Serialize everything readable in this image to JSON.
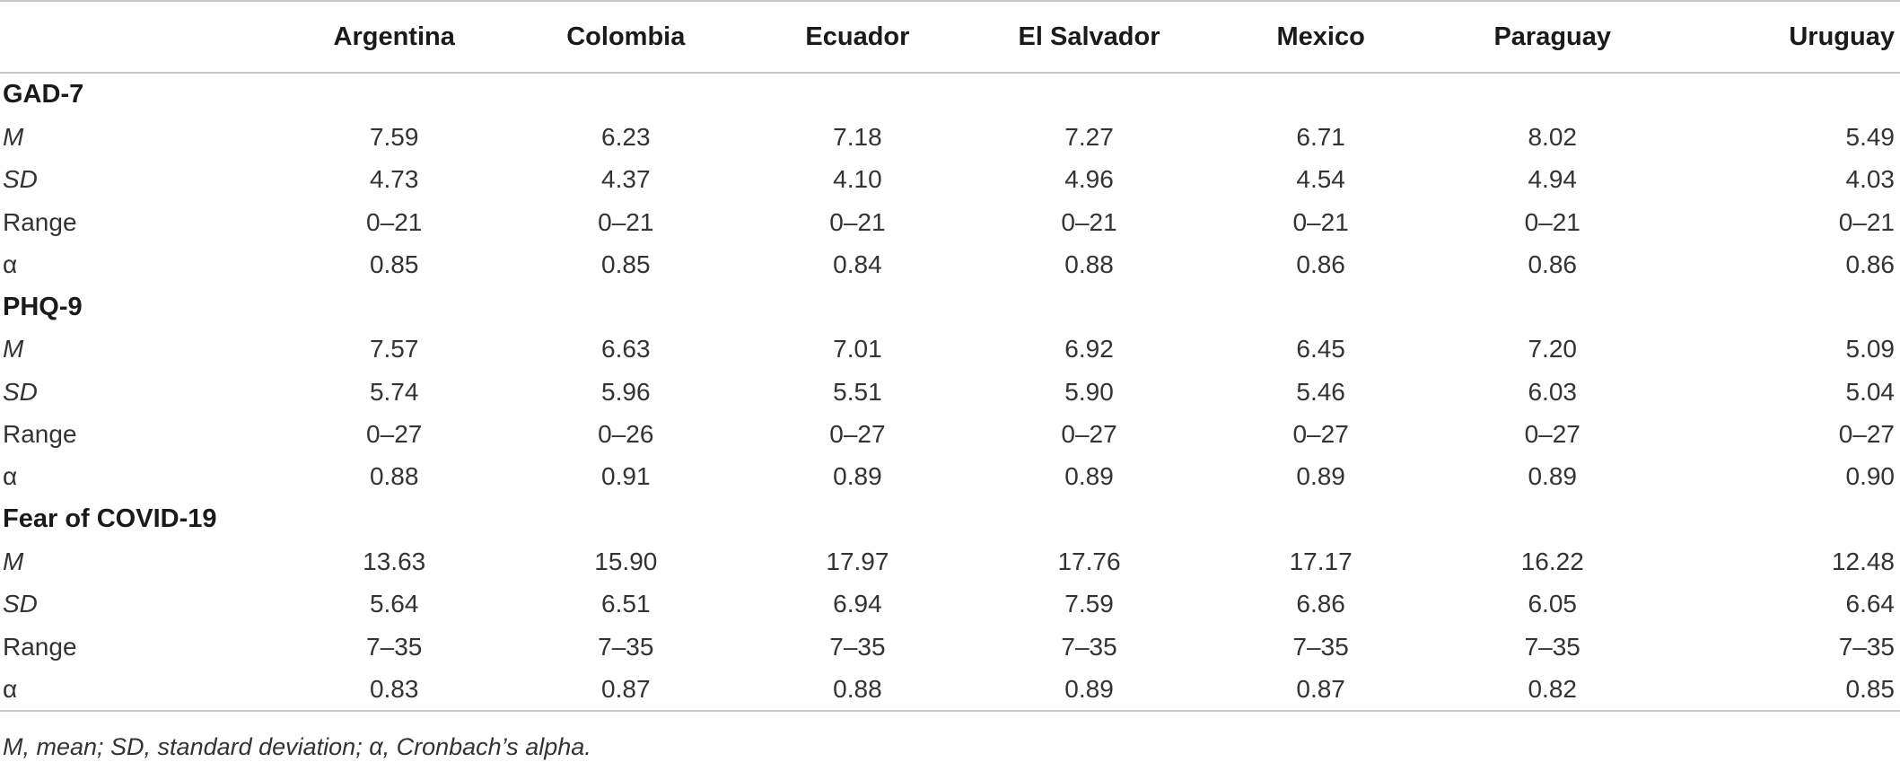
{
  "table": {
    "columns": [
      "",
      "Argentina",
      "Colombia",
      "Ecuador",
      "El Salvador",
      "Mexico",
      "Paraguay",
      "Uruguay"
    ],
    "sections": [
      {
        "title": "GAD-7",
        "rows": [
          {
            "label": "M",
            "italic": true,
            "values": [
              "7.59",
              "6.23",
              "7.18",
              "7.27",
              "6.71",
              "8.02",
              "5.49"
            ]
          },
          {
            "label": "SD",
            "italic": true,
            "values": [
              "4.73",
              "4.37",
              "4.10",
              "4.96",
              "4.54",
              "4.94",
              "4.03"
            ]
          },
          {
            "label": "Range",
            "italic": false,
            "values": [
              "0–21",
              "0–21",
              "0–21",
              "0–21",
              "0–21",
              "0–21",
              "0–21"
            ]
          },
          {
            "label": "α",
            "italic": false,
            "values": [
              "0.85",
              "0.85",
              "0.84",
              "0.88",
              "0.86",
              "0.86",
              "0.86"
            ]
          }
        ]
      },
      {
        "title": "PHQ-9",
        "rows": [
          {
            "label": "M",
            "italic": true,
            "values": [
              "7.57",
              "6.63",
              "7.01",
              "6.92",
              "6.45",
              "7.20",
              "5.09"
            ]
          },
          {
            "label": "SD",
            "italic": true,
            "values": [
              "5.74",
              "5.96",
              "5.51",
              "5.90",
              "5.46",
              "6.03",
              "5.04"
            ]
          },
          {
            "label": "Range",
            "italic": false,
            "values": [
              "0–27",
              "0–26",
              "0–27",
              "0–27",
              "0–27",
              "0–27",
              "0–27"
            ]
          },
          {
            "label": "α",
            "italic": false,
            "values": [
              "0.88",
              "0.91",
              "0.89",
              "0.89",
              "0.89",
              "0.89",
              "0.90"
            ]
          }
        ]
      },
      {
        "title": "Fear of COVID-19",
        "rows": [
          {
            "label": "M",
            "italic": true,
            "values": [
              "13.63",
              "15.90",
              "17.97",
              "17.76",
              "17.17",
              "16.22",
              "12.48"
            ]
          },
          {
            "label": "SD",
            "italic": true,
            "values": [
              "5.64",
              "6.51",
              "6.94",
              "7.59",
              "6.86",
              "6.05",
              "6.64"
            ]
          },
          {
            "label": "Range",
            "italic": false,
            "values": [
              "7–35",
              "7–35",
              "7–35",
              "7–35",
              "7–35",
              "7–35",
              "7–35"
            ]
          },
          {
            "label": "α",
            "italic": false,
            "values": [
              "0.83",
              "0.87",
              "0.88",
              "0.89",
              "0.87",
              "0.82",
              "0.85"
            ]
          }
        ]
      }
    ]
  },
  "footnote": "M, mean; SD, standard deviation; α, Cronbach’s alpha."
}
